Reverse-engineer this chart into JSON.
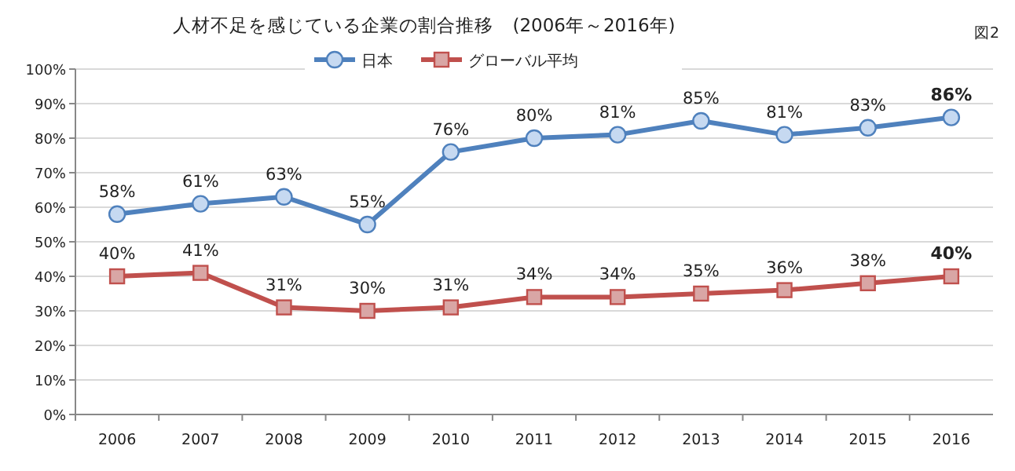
{
  "chart_data": {
    "type": "line",
    "title": "人材不足を感じている企業の割合推移　(2006年～2016年)",
    "annotations": [
      "図2"
    ],
    "categories": [
      "2006",
      "2007",
      "2008",
      "2009",
      "2010",
      "2011",
      "2012",
      "2013",
      "2014",
      "2015",
      "2016"
    ],
    "series": [
      {
        "name": "日本",
        "color": "#4f81bd",
        "marker": "circle",
        "values": [
          58,
          61,
          63,
          55,
          76,
          80,
          81,
          85,
          81,
          83,
          86
        ],
        "value_labels": [
          "58%",
          "61%",
          "63%",
          "55%",
          "76%",
          "80%",
          "81%",
          "85%",
          "81%",
          "83%",
          "**86%**"
        ]
      },
      {
        "name": "グローバル平均",
        "color": "#c0504d",
        "marker": "square",
        "values": [
          40,
          41,
          31,
          30,
          31,
          34,
          34,
          35,
          36,
          38,
          40
        ],
        "value_labels": [
          "40%",
          "41%",
          "31%",
          "30%",
          "31%",
          "34%",
          "34%",
          "35%",
          "36%",
          "38%",
          "**40%**"
        ]
      }
    ],
    "ylim": [
      0,
      100
    ],
    "yticks": [
      {
        "value": 0,
        "label": "0%"
      },
      {
        "value": 10,
        "label": "10%"
      },
      {
        "value": 20,
        "label": "20%"
      },
      {
        "value": 30,
        "label": "30%"
      },
      {
        "value": 40,
        "label": "40%"
      },
      {
        "value": 50,
        "label": "50%"
      },
      {
        "value": 60,
        "label": "60%"
      },
      {
        "value": 70,
        "label": "70%"
      },
      {
        "value": 80,
        "label": "80%"
      },
      {
        "value": 90,
        "label": "90%"
      },
      {
        "value": 100,
        "label": "100%"
      }
    ],
    "grid": "y",
    "legend": "top",
    "line_style": "solid"
  }
}
